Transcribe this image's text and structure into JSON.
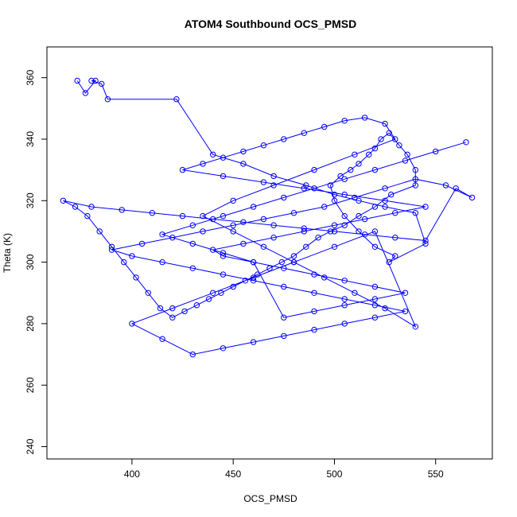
{
  "chart_data": {
    "type": "line",
    "title": "ATOM4 Southbound OCS_PMSD",
    "xlabel": "OCS_PMSD",
    "ylabel": "Theta (K)",
    "xlim": [
      358,
      578
    ],
    "ylim": [
      236,
      370
    ],
    "xticks": [
      "400",
      "450",
      "500",
      "550"
    ],
    "yticks": [
      "240",
      "260",
      "280",
      "300",
      "320",
      "340",
      "360"
    ],
    "grid": false,
    "legend": "none",
    "color": "#0000ff",
    "marker": "open-circle",
    "series": [
      {
        "x": [
          373,
          377,
          382,
          380,
          385,
          388,
          422,
          440,
          455,
          470,
          486,
          500,
          512,
          525,
          540,
          545,
          527,
          530,
          520,
          512,
          505,
          500,
          498,
          503,
          508,
          512,
          517,
          520,
          523,
          527,
          532,
          536,
          540,
          540,
          528,
          520,
          512,
          505,
          498,
          492,
          486,
          480,
          474,
          468,
          462,
          456,
          450,
          444,
          438,
          432,
          426,
          420,
          414,
          408,
          402,
          396,
          390,
          384,
          378,
          372,
          366,
          380,
          395,
          410,
          425,
          440,
          455,
          470,
          485,
          500,
          515,
          530,
          545,
          560,
          568,
          555,
          540,
          525,
          510,
          495,
          480,
          465,
          450,
          435,
          420,
          405,
          390,
          400,
          415,
          430,
          445,
          460,
          475,
          490,
          505,
          520,
          535,
          520,
          505,
          490,
          475,
          460,
          445,
          430,
          415,
          400,
          420,
          440,
          460,
          480,
          500,
          520,
          540,
          525,
          510,
          495,
          480,
          465,
          450,
          435,
          450,
          470,
          490,
          510,
          530,
          525,
          515,
          505,
          495,
          485,
          475,
          465,
          455,
          445,
          435,
          425,
          445,
          465,
          485,
          505,
          525,
          545,
          530,
          515,
          500,
          485,
          470,
          455,
          440,
          445,
          460,
          475,
          490,
          505,
          520,
          535,
          520,
          505,
          490,
          475,
          460,
          445,
          430,
          415,
          430,
          445,
          460,
          475,
          490,
          505,
          520,
          535,
          550,
          565
        ],
        "y": [
          359,
          355,
          359,
          359,
          358,
          353,
          353,
          335,
          332,
          328,
          325,
          322,
          320,
          318,
          316,
          306,
          300,
          302,
          305,
          310,
          315,
          320,
          325,
          328,
          330,
          332,
          335,
          337,
          340,
          342,
          338,
          335,
          330,
          325,
          322,
          318,
          315,
          312,
          310,
          308,
          305,
          302,
          300,
          298,
          296,
          294,
          292,
          290,
          288,
          286,
          284,
          282,
          285,
          290,
          295,
          300,
          305,
          310,
          315,
          318,
          320,
          318,
          317,
          316,
          315,
          314,
          313,
          312,
          311,
          310,
          309,
          308,
          307,
          324,
          321,
          325,
          327,
          324,
          321,
          318,
          316,
          314,
          312,
          310,
          308,
          306,
          304,
          302,
          300,
          298,
          296,
          294,
          292,
          290,
          288,
          286,
          284,
          282,
          280,
          278,
          276,
          274,
          272,
          270,
          275,
          280,
          285,
          290,
          295,
          300,
          305,
          310,
          279,
          285,
          290,
          295,
          300,
          305,
          310,
          315,
          320,
          325,
          330,
          335,
          340,
          345,
          347,
          346,
          344,
          342,
          340,
          338,
          336,
          334,
          332,
          330,
          328,
          326,
          324,
          322,
          320,
          318,
          316,
          314,
          312,
          310,
          308,
          306,
          304,
          302,
          300,
          298,
          296,
          294,
          292,
          290,
          288,
          286,
          284,
          282,
          300,
          303,
          306,
          309,
          312,
          315,
          318,
          321,
          324,
          327,
          330,
          333,
          336,
          339
        ]
      }
    ]
  }
}
